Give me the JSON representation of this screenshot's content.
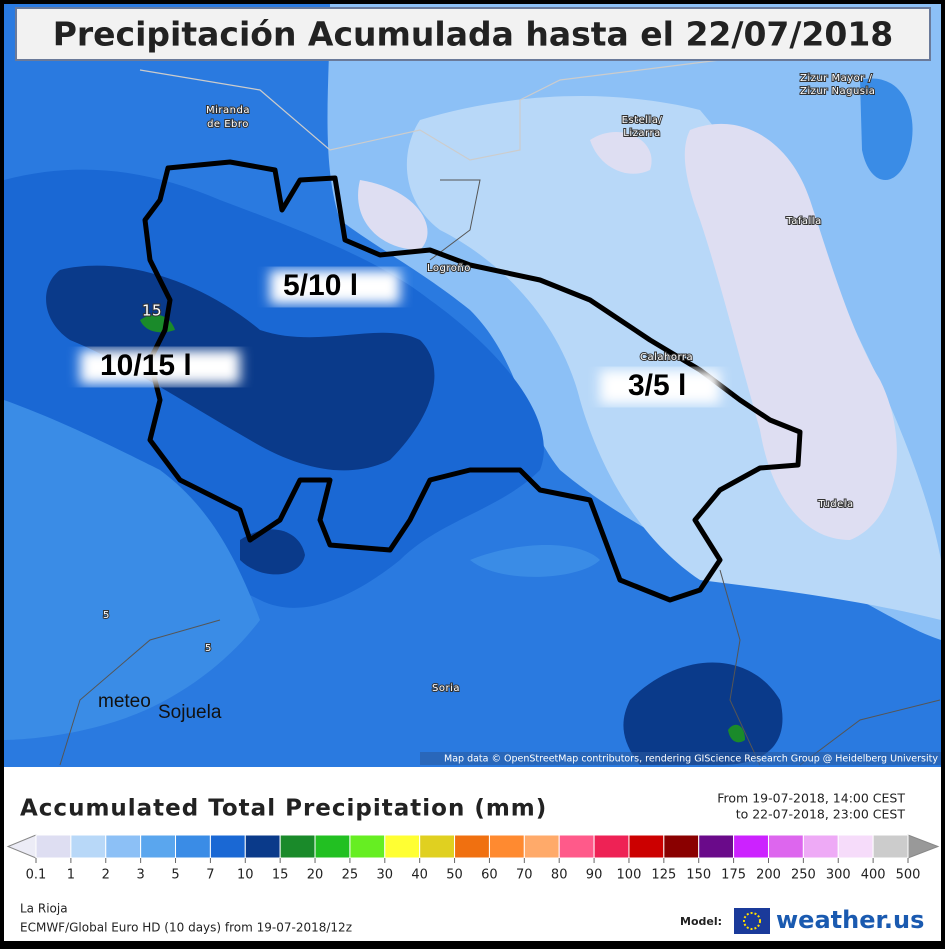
{
  "header": {
    "title": "Precipitación Acumulada hasta el 22/07/2018"
  },
  "map": {
    "places": [
      {
        "label": "Miranda"
      },
      {
        "label": "de Ebro"
      },
      {
        "label": "Estella/"
      },
      {
        "label": "Lizarra"
      },
      {
        "label": "Zizur Mayor /"
      },
      {
        "label": "Zizur Nagusia"
      },
      {
        "label": "Tafalla"
      },
      {
        "label": "Logroño"
      },
      {
        "label": "Calahorra"
      },
      {
        "label": "Tudela"
      },
      {
        "label": "Soria"
      }
    ],
    "contour_labels": [
      "5",
      "5",
      "15"
    ],
    "annotations": [
      "5/10 l",
      "10/15 l",
      "3/5 l"
    ],
    "watermark": [
      "meteo",
      "Sojuela"
    ],
    "attribution": "Map data © OpenStreetMap contributors, rendering GIScience Research Group @ Heidelberg University"
  },
  "legend": {
    "title": "Accumulated Total Precipitation (mm)",
    "period": [
      "From 19-07-2018, 14:00 CEST",
      "to 22-07-2018, 23:00 CEST"
    ],
    "ticks": [
      0.1,
      1,
      2,
      3,
      5,
      7,
      10,
      15,
      20,
      25,
      30,
      40,
      50,
      60,
      70,
      80,
      90,
      100,
      125,
      150,
      175,
      200,
      250,
      300,
      400,
      500
    ],
    "colors": [
      "#dedef2",
      "#b8d8f8",
      "#8cc0f6",
      "#5aa6ee",
      "#3a8ce6",
      "#1a68d4",
      "#0a3a8a",
      "#1a8a2a",
      "#22c022",
      "#66ee22",
      "#ffff33",
      "#e0d020",
      "#f07010",
      "#ff8a30",
      "#ffaa6a",
      "#ff5a8a",
      "#ee2255",
      "#cc0000",
      "#8a0000",
      "#6a0a8a",
      "#cc22ff",
      "#dd66ee",
      "#eeaaf6",
      "#f6dcfa",
      "#cccccc"
    ],
    "under_color": "#ececf6",
    "over_color": "#999999"
  },
  "footer": {
    "region": "La Rioja",
    "model_run": "ECMWF/Global Euro HD (10 days) from 19-07-2018/12z",
    "model_label": "Model:",
    "brand": "weather.us"
  }
}
